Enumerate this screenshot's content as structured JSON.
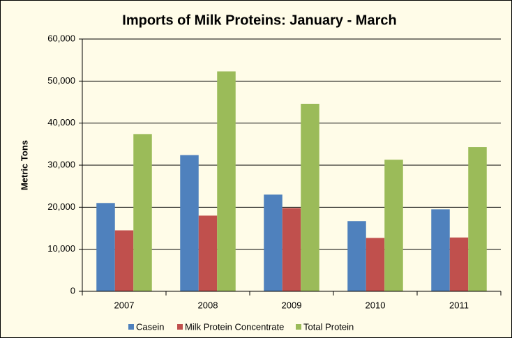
{
  "chart_data": {
    "type": "bar",
    "title": "Imports of Milk Proteins: January - March",
    "y_label": "Metric Tons",
    "categories": [
      "2007",
      "2008",
      "2009",
      "2010",
      "2011"
    ],
    "series": [
      {
        "name": "Casein",
        "color": "#4f81bd",
        "values": [
          21000,
          32400,
          23000,
          16700,
          19500
        ]
      },
      {
        "name": "Milk Protein Concentrate",
        "color": "#c0504d",
        "values": [
          14500,
          18000,
          19800,
          12700,
          12800
        ]
      },
      {
        "name": "Total Protein",
        "color": "#9bbb59",
        "values": [
          37400,
          52300,
          44600,
          31300,
          34300
        ]
      }
    ],
    "ylim": [
      0,
      60000
    ],
    "yticks": [
      0,
      {
        "value": 10000,
        "label": "10,000"
      },
      {
        "value": 20000,
        "label": "20,000"
      },
      {
        "value": 30000,
        "label": "30,000"
      },
      {
        "value": 40000,
        "label": "40,000"
      },
      {
        "value": 50000,
        "label": "50,000"
      },
      {
        "value": 60000,
        "label": "60,000"
      }
    ],
    "grid": true,
    "legend": "bottom"
  }
}
